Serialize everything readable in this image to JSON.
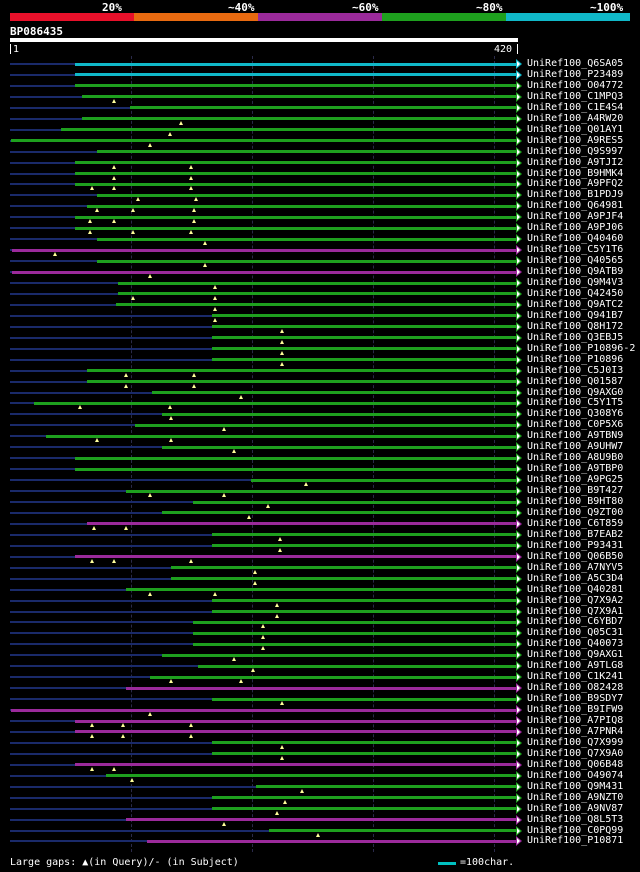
{
  "legend": {
    "labels": [
      "20%",
      "~40%",
      "~60%",
      "~80%",
      "~100%"
    ],
    "colors": [
      "#e8102a",
      "#e86a10",
      "#9b2a9b",
      "#1ea01e",
      "#10b8c8"
    ]
  },
  "query": {
    "id": "BP086435",
    "start": "1",
    "end": "420",
    "length": 420
  },
  "hits": [
    {
      "label": "UniRef100_Q6SA05",
      "color": "#10b8c8",
      "pre": [
        0,
        54
      ],
      "seg": [
        54,
        420
      ],
      "tri": []
    },
    {
      "label": "UniRef100_P23489",
      "color": "#10b8c8",
      "pre": [
        0,
        54
      ],
      "seg": [
        54,
        420
      ],
      "tri": []
    },
    {
      "label": "UniRef100_O04772",
      "color": "#1ea01e",
      "pre": [
        0,
        54
      ],
      "seg": [
        54,
        420
      ],
      "tri": []
    },
    {
      "label": "UniRef100_C1MPQ3",
      "color": "#1ea01e",
      "pre": [
        0,
        60
      ],
      "seg": [
        60,
        420
      ],
      "tri": [
        86
      ]
    },
    {
      "label": "UniRef100_C1E4S4",
      "color": "#1ea01e",
      "pre": [
        0,
        100
      ],
      "seg": [
        100,
        420
      ],
      "tri": []
    },
    {
      "label": "UniRef100_A4RW20",
      "color": "#1ea01e",
      "pre": [
        0,
        60
      ],
      "seg": [
        60,
        420
      ],
      "tri": [
        142
      ]
    },
    {
      "label": "UniRef100_Q01AY1",
      "color": "#1ea01e",
      "pre": [
        0,
        42
      ],
      "seg": [
        42,
        420
      ],
      "tri": [
        133
      ]
    },
    {
      "label": "UniRef100_A9RES5",
      "color": "#1ea01e",
      "pre": [
        0,
        1
      ],
      "seg": [
        1,
        420
      ],
      "tri": [
        116
      ]
    },
    {
      "label": "UniRef100_Q9S997",
      "color": "#1ea01e",
      "pre": [
        0,
        72
      ],
      "seg": [
        72,
        420
      ],
      "tri": []
    },
    {
      "label": "UniRef100_A9TJI2",
      "color": "#1ea01e",
      "pre": [
        0,
        54
      ],
      "seg": [
        54,
        420
      ],
      "tri": [
        86,
        150
      ]
    },
    {
      "label": "UniRef100_B9HMK4",
      "color": "#1ea01e",
      "pre": [
        0,
        54
      ],
      "seg": [
        54,
        420
      ],
      "tri": [
        86,
        150
      ]
    },
    {
      "label": "UniRef100_A9PFQ2",
      "color": "#1ea01e",
      "pre": [
        0,
        54
      ],
      "seg": [
        54,
        420
      ],
      "tri": [
        68,
        86,
        150
      ]
    },
    {
      "label": "UniRef100_B1PDJ9",
      "color": "#1ea01e",
      "pre": [
        0,
        72
      ],
      "seg": [
        72,
        420
      ],
      "tri": [
        106,
        154
      ]
    },
    {
      "label": "UniRef100_Q64981",
      "color": "#1ea01e",
      "pre": [
        0,
        64
      ],
      "seg": [
        64,
        420
      ],
      "tri": [
        72,
        102,
        153
      ]
    },
    {
      "label": "UniRef100_A9PJF4",
      "color": "#1ea01e",
      "pre": [
        0,
        54
      ],
      "seg": [
        54,
        420
      ],
      "tri": [
        66,
        86,
        153
      ]
    },
    {
      "label": "UniRef100_A9PJ06",
      "color": "#1ea01e",
      "pre": [
        0,
        54
      ],
      "seg": [
        54,
        420
      ],
      "tri": [
        66,
        102,
        150
      ]
    },
    {
      "label": "UniRef100_Q40460",
      "color": "#1ea01e",
      "pre": [
        0,
        72
      ],
      "seg": [
        72,
        420
      ],
      "tri": [
        162
      ]
    },
    {
      "label": "UniRef100_C5Y1T6",
      "color": "#9b2a9b",
      "pre": [
        0,
        2
      ],
      "seg": [
        2,
        420
      ],
      "tri": [
        37
      ]
    },
    {
      "label": "UniRef100_Q40565",
      "color": "#1ea01e",
      "pre": [
        0,
        72
      ],
      "seg": [
        72,
        420
      ],
      "tri": [
        162
      ]
    },
    {
      "label": "UniRef100_Q9ATB9",
      "color": "#9b2a9b",
      "pre": [
        0,
        2
      ],
      "seg": [
        2,
        420
      ],
      "tri": [
        116
      ]
    },
    {
      "label": "UniRef100_Q9M4V3",
      "color": "#1ea01e",
      "pre": [
        0,
        90
      ],
      "seg": [
        90,
        420
      ],
      "tri": [
        170
      ]
    },
    {
      "label": "UniRef100_Q42450",
      "color": "#1ea01e",
      "pre": [
        0,
        90
      ],
      "seg": [
        90,
        420
      ],
      "tri": [
        102,
        170
      ]
    },
    {
      "label": "UniRef100_Q9ATC2",
      "color": "#1ea01e",
      "pre": [
        0,
        88
      ],
      "seg": [
        88,
        420
      ],
      "tri": [
        170
      ]
    },
    {
      "label": "UniRef100_Q941B7",
      "color": "#1ea01e",
      "pre": [
        0,
        168
      ],
      "seg": [
        168,
        420
      ],
      "tri": [
        170
      ]
    },
    {
      "label": "UniRef100_Q8H172",
      "color": "#1ea01e",
      "pre": [
        0,
        168
      ],
      "seg": [
        168,
        420
      ],
      "tri": [
        226
      ]
    },
    {
      "label": "UniRef100_Q3EBJ5",
      "color": "#1ea01e",
      "pre": [
        0,
        168
      ],
      "seg": [
        168,
        420
      ],
      "tri": [
        226
      ]
    },
    {
      "label": "UniRef100_P10896-2",
      "color": "#1ea01e",
      "pre": [
        0,
        168
      ],
      "seg": [
        168,
        420
      ],
      "tri": [
        226
      ]
    },
    {
      "label": "UniRef100_P10896",
      "color": "#1ea01e",
      "pre": [
        0,
        168
      ],
      "seg": [
        168,
        420
      ],
      "tri": [
        226
      ]
    },
    {
      "label": "UniRef100_C5J0I3",
      "color": "#1ea01e",
      "pre": [
        0,
        64
      ],
      "seg": [
        64,
        420
      ],
      "tri": [
        96,
        153
      ]
    },
    {
      "label": "UniRef100_Q01587",
      "color": "#1ea01e",
      "pre": [
        0,
        64
      ],
      "seg": [
        64,
        420
      ],
      "tri": [
        96,
        153
      ]
    },
    {
      "label": "UniRef100_Q9AXG0",
      "color": "#1ea01e",
      "pre": [
        0,
        118
      ],
      "seg": [
        118,
        420
      ],
      "tri": [
        192
      ]
    },
    {
      "label": "UniRef100_C5Y1T5",
      "color": "#1ea01e",
      "pre": [
        0,
        20
      ],
      "seg": [
        20,
        420
      ],
      "tri": [
        58,
        133
      ]
    },
    {
      "label": "UniRef100_Q308Y6",
      "color": "#1ea01e",
      "pre": [
        0,
        126
      ],
      "seg": [
        126,
        420
      ],
      "tri": [
        134
      ]
    },
    {
      "label": "UniRef100_C0P5X6",
      "color": "#1ea01e",
      "pre": [
        0,
        104
      ],
      "seg": [
        104,
        420
      ],
      "tri": [
        178
      ]
    },
    {
      "label": "UniRef100_A9TBN9",
      "color": "#1ea01e",
      "pre": [
        0,
        30
      ],
      "seg": [
        30,
        420
      ],
      "tri": [
        72,
        134
      ]
    },
    {
      "label": "UniRef100_A9UHW7",
      "color": "#1ea01e",
      "pre": [
        0,
        126
      ],
      "seg": [
        126,
        420
      ],
      "tri": [
        186
      ]
    },
    {
      "label": "UniRef100_A8U9B0",
      "color": "#1ea01e",
      "pre": [
        0,
        54
      ],
      "seg": [
        54,
        420
      ],
      "tri": []
    },
    {
      "label": "UniRef100_A9TBP0",
      "color": "#1ea01e",
      "pre": [
        0,
        54
      ],
      "seg": [
        54,
        420
      ],
      "tri": []
    },
    {
      "label": "UniRef100_A9PG25",
      "color": "#1ea01e",
      "pre": [
        0,
        200
      ],
      "seg": [
        200,
        420
      ],
      "tri": [
        246
      ]
    },
    {
      "label": "UniRef100_B9T427",
      "color": "#1ea01e",
      "pre": [
        0,
        96
      ],
      "seg": [
        96,
        420
      ],
      "tri": [
        116,
        178
      ]
    },
    {
      "label": "UniRef100_B9HT80",
      "color": "#1ea01e",
      "pre": [
        0,
        152
      ],
      "seg": [
        152,
        420
      ],
      "tri": [
        214
      ]
    },
    {
      "label": "UniRef100_Q9ZT00",
      "color": "#1ea01e",
      "pre": [
        0,
        126
      ],
      "seg": [
        126,
        420
      ],
      "tri": [
        198
      ]
    },
    {
      "label": "UniRef100_C6T859",
      "color": "#9b2a9b",
      "pre": [
        0,
        64
      ],
      "seg": [
        64,
        420
      ],
      "tri": [
        70,
        96
      ]
    },
    {
      "label": "UniRef100_B7EAB2",
      "color": "#1ea01e",
      "pre": [
        0,
        168
      ],
      "seg": [
        168,
        420
      ],
      "tri": [
        224
      ]
    },
    {
      "label": "UniRef100_P93431",
      "color": "#1ea01e",
      "pre": [
        0,
        168
      ],
      "seg": [
        168,
        420
      ],
      "tri": [
        224
      ]
    },
    {
      "label": "UniRef100_Q06B50",
      "color": "#9b2a9b",
      "pre": [
        0,
        54
      ],
      "seg": [
        54,
        420
      ],
      "tri": [
        68,
        86,
        150
      ]
    },
    {
      "label": "UniRef100_A7NYV5",
      "color": "#1ea01e",
      "pre": [
        0,
        134
      ],
      "seg": [
        134,
        420
      ],
      "tri": [
        203
      ]
    },
    {
      "label": "UniRef100_A5C3D4",
      "color": "#1ea01e",
      "pre": [
        0,
        134
      ],
      "seg": [
        134,
        420
      ],
      "tri": [
        203
      ]
    },
    {
      "label": "UniRef100_Q40281",
      "color": "#1ea01e",
      "pre": [
        0,
        96
      ],
      "seg": [
        96,
        420
      ],
      "tri": [
        116,
        170
      ]
    },
    {
      "label": "UniRef100_Q7X9A2",
      "color": "#1ea01e",
      "pre": [
        0,
        168
      ],
      "seg": [
        168,
        420
      ],
      "tri": [
        222
      ]
    },
    {
      "label": "UniRef100_Q7X9A1",
      "color": "#1ea01e",
      "pre": [
        0,
        168
      ],
      "seg": [
        168,
        420
      ],
      "tri": [
        222
      ]
    },
    {
      "label": "UniRef100_C6YBD7",
      "color": "#1ea01e",
      "pre": [
        0,
        152
      ],
      "seg": [
        152,
        420
      ],
      "tri": [
        210
      ]
    },
    {
      "label": "UniRef100_Q05C31",
      "color": "#1ea01e",
      "pre": [
        0,
        152
      ],
      "seg": [
        152,
        420
      ],
      "tri": [
        210
      ]
    },
    {
      "label": "UniRef100_Q40073",
      "color": "#1ea01e",
      "pre": [
        0,
        152
      ],
      "seg": [
        152,
        420
      ],
      "tri": [
        210
      ]
    },
    {
      "label": "UniRef100_Q9AXG1",
      "color": "#1ea01e",
      "pre": [
        0,
        126
      ],
      "seg": [
        126,
        420
      ],
      "tri": [
        186
      ]
    },
    {
      "label": "UniRef100_A9TLG8",
      "color": "#1ea01e",
      "pre": [
        0,
        156
      ],
      "seg": [
        156,
        420
      ],
      "tri": [
        202
      ]
    },
    {
      "label": "UniRef100_C1K241",
      "color": "#1ea01e",
      "pre": [
        0,
        116
      ],
      "seg": [
        116,
        420
      ],
      "tri": [
        134,
        192
      ]
    },
    {
      "label": "UniRef100_O82428",
      "color": "#9b2a9b",
      "pre": [
        0,
        96
      ],
      "seg": [
        96,
        420
      ],
      "tri": []
    },
    {
      "label": "UniRef100_B9SDY7",
      "color": "#1ea01e",
      "pre": [
        0,
        168
      ],
      "seg": [
        168,
        420
      ],
      "tri": [
        226
      ]
    },
    {
      "label": "UniRef100_B9IFW9",
      "color": "#9b2a9b",
      "pre": [
        0,
        1
      ],
      "seg": [
        1,
        420
      ],
      "tri": [
        116
      ]
    },
    {
      "label": "UniRef100_A7PIQ8",
      "color": "#9b2a9b",
      "pre": [
        0,
        54
      ],
      "seg": [
        54,
        420
      ],
      "tri": [
        68,
        94,
        150
      ]
    },
    {
      "label": "UniRef100_A7PNR4",
      "color": "#9b2a9b",
      "pre": [
        0,
        54
      ],
      "seg": [
        54,
        420
      ],
      "tri": [
        68,
        94,
        150
      ]
    },
    {
      "label": "UniRef100_Q7X999",
      "color": "#1ea01e",
      "pre": [
        0,
        168
      ],
      "seg": [
        168,
        420
      ],
      "tri": [
        226
      ]
    },
    {
      "label": "UniRef100_Q7X9A0",
      "color": "#1ea01e",
      "pre": [
        0,
        168
      ],
      "seg": [
        168,
        420
      ],
      "tri": [
        226
      ]
    },
    {
      "label": "UniRef100_Q06B48",
      "color": "#9b2a9b",
      "pre": [
        0,
        54
      ],
      "seg": [
        54,
        420
      ],
      "tri": [
        68,
        86
      ]
    },
    {
      "label": "UniRef100_O49074",
      "color": "#1ea01e",
      "pre": [
        0,
        80
      ],
      "seg": [
        80,
        420
      ],
      "tri": [
        101
      ]
    },
    {
      "label": "UniRef100_Q9M431",
      "color": "#1ea01e",
      "pre": [
        0,
        204
      ],
      "seg": [
        204,
        420
      ],
      "tri": [
        242
      ]
    },
    {
      "label": "UniRef100_A9NZT0",
      "color": "#1ea01e",
      "pre": [
        0,
        168
      ],
      "seg": [
        168,
        420
      ],
      "tri": [
        228
      ]
    },
    {
      "label": "UniRef100_A9NV87",
      "color": "#1ea01e",
      "pre": [
        0,
        168
      ],
      "seg": [
        168,
        420
      ],
      "tri": [
        222
      ]
    },
    {
      "label": "UniRef100_Q8L5T3",
      "color": "#9b2a9b",
      "pre": [
        0,
        96
      ],
      "seg": [
        96,
        420
      ],
      "tri": [
        178
      ]
    },
    {
      "label": "UniRef100_C0PQ99",
      "color": "#1ea01e",
      "pre": [
        0,
        215
      ],
      "seg": [
        215,
        420
      ],
      "tri": [
        256
      ]
    },
    {
      "label": "UniRef100_P10871",
      "color": "#9b2a9b",
      "pre": [
        0,
        114
      ],
      "seg": [
        114,
        420
      ],
      "tri": []
    }
  ],
  "footer": {
    "large_gaps_label": "Large gaps: ▲(in Query)/- (in Subject)",
    "scale_label": "=100char."
  }
}
